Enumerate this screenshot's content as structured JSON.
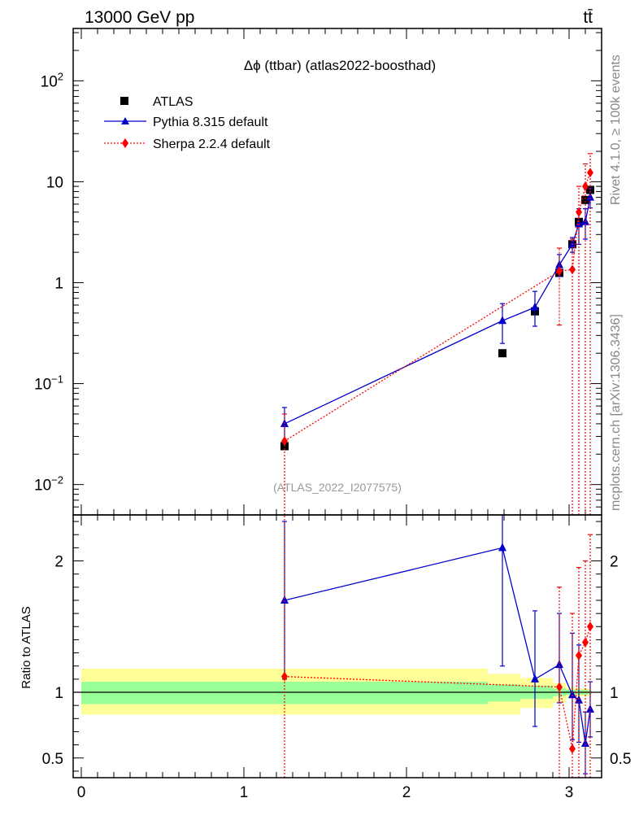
{
  "header": {
    "left": "13000 GeV pp",
    "right": "tt̄"
  },
  "side": {
    "rivet": "Rivet 4.1.0, ≥ 100k events",
    "mcplots": "mcplots.cern.ch [arXiv:1306.3436]"
  },
  "chart_data": [
    {
      "type": "scatter",
      "title": "Δϕ (ttbar) (atlas2022-boosthad)",
      "watermark": "(ATLAS_2022_I2077575)",
      "xlim": [
        -0.05,
        3.2
      ],
      "ylim_log": [
        0.005,
        330
      ],
      "yscale": "log",
      "y_ticks": [
        {
          "v": 100,
          "base": "10",
          "exp": "2"
        },
        {
          "v": 10,
          "label": "10"
        },
        {
          "v": 1,
          "label": "1"
        },
        {
          "v": 0.1,
          "base": "10",
          "exp": "−1"
        },
        {
          "v": 0.01,
          "base": "10",
          "exp": "−2"
        }
      ],
      "legend": [
        "ATLAS",
        "Pythia 8.315 default",
        "Sherpa 2.2.4 default"
      ],
      "series": [
        {
          "name": "ATLAS",
          "color": "#000000",
          "marker": "square",
          "x": [
            1.25,
            2.59,
            2.79,
            2.94,
            3.02,
            3.06,
            3.1,
            3.13
          ],
          "y": [
            0.024,
            0.2,
            0.52,
            1.25,
            2.4,
            4.0,
            6.6,
            8.3
          ]
        },
        {
          "name": "Pythia 8.315 default",
          "color": "#0000cc",
          "marker": "triangle",
          "line": "solid",
          "x": [
            1.25,
            2.59,
            2.79,
            2.94,
            3.02,
            3.06,
            3.1,
            3.13
          ],
          "y": [
            0.04,
            0.42,
            0.57,
            1.5,
            2.4,
            3.8,
            4.0,
            7.0
          ],
          "err_lo": [
            0.026,
            0.25,
            0.37,
            1.15,
            2.0,
            2.4,
            2.7,
            5.5
          ],
          "err_hi": [
            0.058,
            0.62,
            0.82,
            1.9,
            2.8,
            5.4,
            5.4,
            8.6
          ]
        },
        {
          "name": "Sherpa 2.2.4 default",
          "color": "#ff0000",
          "marker": "diamond",
          "line": "dotted",
          "x": [
            1.25,
            2.94,
            3.02,
            3.06,
            3.1,
            3.13
          ],
          "y": [
            0.027,
            1.3,
            1.35,
            5.0,
            9.0,
            12.3
          ],
          "err_lo": [
            0.004,
            0.38,
            0.004,
            0.004,
            0.004,
            0.004
          ],
          "err_hi": [
            0.05,
            2.2,
            2.7,
            9.0,
            15.0,
            19.0
          ]
        }
      ]
    },
    {
      "type": "scatter",
      "ylabel": "Ratio to ATLAS",
      "xlim": [
        -0.05,
        3.2
      ],
      "ylim": [
        0.35,
        2.35
      ],
      "x_ticks": [
        0,
        1,
        2,
        3
      ],
      "y_ticks": [
        0.5,
        1,
        2
      ],
      "reference_line": 1,
      "bands": {
        "x_edges": [
          0,
          2.5,
          2.7,
          2.9,
          2.98,
          3.04,
          3.08,
          3.12,
          3.14
        ],
        "stat_lo": [
          0.91,
          0.93,
          0.95,
          0.97,
          0.98,
          0.98,
          0.98,
          0.99
        ],
        "stat_hi": [
          1.08,
          1.06,
          1.05,
          1.03,
          1.02,
          1.02,
          1.02,
          1.01
        ],
        "tot_lo": [
          0.83,
          0.83,
          0.88,
          0.92,
          0.96,
          0.97,
          0.97,
          0.98
        ],
        "tot_hi": [
          1.18,
          1.14,
          1.11,
          1.07,
          1.04,
          1.03,
          1.03,
          1.02
        ],
        "stat_color": "#99ff99",
        "tot_color": "#ffff99"
      },
      "series": [
        {
          "name": "Pythia 8.315 default",
          "color": "#0000cc",
          "marker": "triangle",
          "line": "solid",
          "x": [
            1.25,
            2.59,
            2.79,
            2.94,
            3.02,
            3.06,
            3.1,
            3.13
          ],
          "y": [
            1.7,
            2.1,
            1.1,
            1.21,
            0.98,
            0.94,
            0.61,
            0.87
          ],
          "err_lo": [
            1.1,
            1.2,
            0.74,
            0.92,
            0.64,
            0.62,
            0.38,
            0.66
          ],
          "err_hi": [
            2.3,
            2.4,
            1.62,
            1.6,
            1.45,
            1.36,
            0.85,
            1.08
          ]
        },
        {
          "name": "Sherpa 2.2.4 default",
          "color": "#ff0000",
          "marker": "diamond",
          "line": "dotted",
          "x": [
            1.25,
            2.94,
            3.02,
            3.06,
            3.1,
            3.13
          ],
          "y": [
            1.12,
            1.04,
            0.57,
            1.28,
            1.38,
            1.5
          ],
          "err_lo": [
            0.2,
            0.2,
            0.2,
            0.2,
            0.2,
            0.2
          ],
          "err_hi": [
            2.35,
            1.8,
            1.6,
            1.95,
            2.0,
            2.2
          ]
        }
      ]
    }
  ]
}
